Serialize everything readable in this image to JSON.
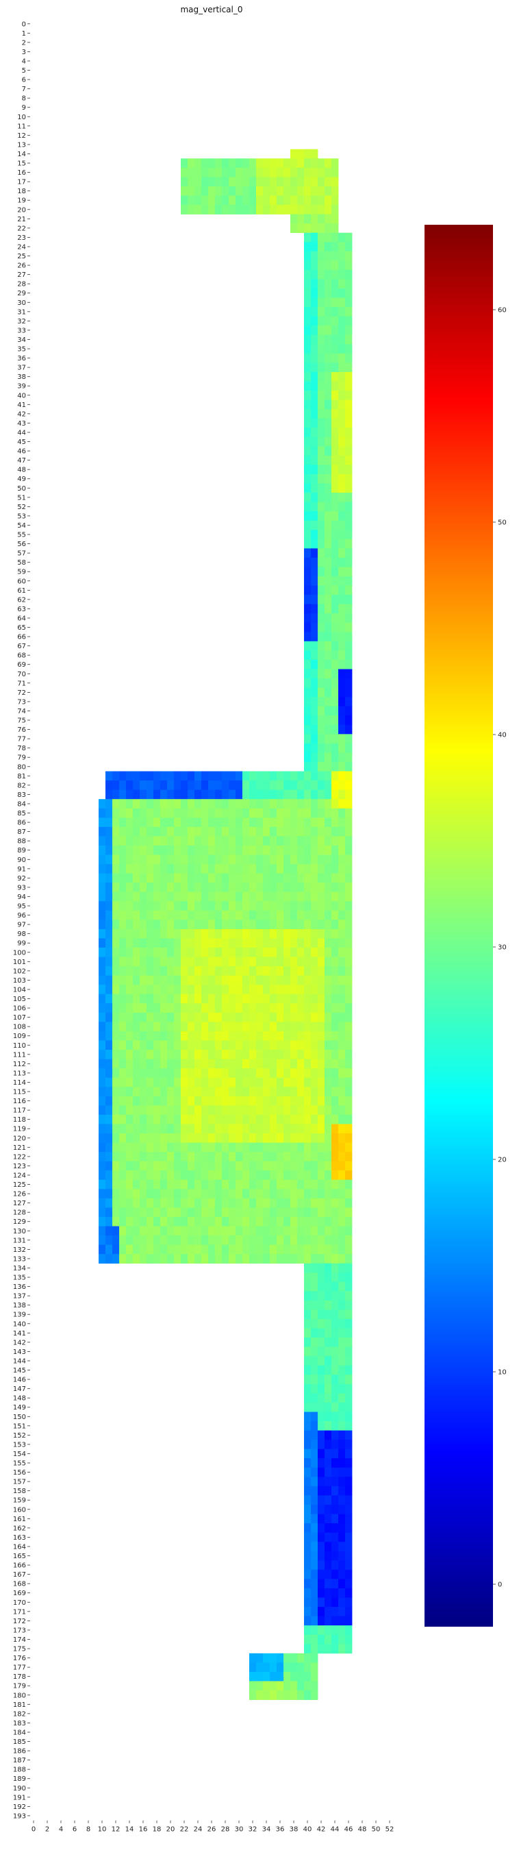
{
  "chart_data": {
    "type": "heatmap",
    "title": "mag_vertical_0",
    "xlabel": "",
    "ylabel": "",
    "x_range": [
      0,
      53
    ],
    "y_range": [
      0,
      193
    ],
    "x_tick_labels": [
      "0",
      "2",
      "4",
      "6",
      "8",
      "10",
      "12",
      "14",
      "16",
      "18",
      "20",
      "22",
      "24",
      "26",
      "28",
      "30",
      "32",
      "34",
      "36",
      "38",
      "40",
      "42",
      "44",
      "46",
      "48",
      "50",
      "52"
    ],
    "y_tick_step": 1,
    "colormap": "jet",
    "colorbar": {
      "vmin": -2,
      "vmax": 64,
      "ticks": [
        0,
        10,
        20,
        30,
        40,
        50,
        60
      ],
      "tick_labels": [
        "0",
        "10",
        "20",
        "30",
        "40",
        "50",
        "60"
      ]
    },
    "grid": false,
    "shape": [
      {
        "rows": [
          14,
          14
        ],
        "cols": [
          38,
          41
        ],
        "value": 36
      },
      {
        "rows": [
          15,
          20
        ],
        "cols": [
          22,
          44
        ],
        "value": 34
      },
      {
        "rows": [
          21,
          22
        ],
        "cols": [
          38,
          44
        ],
        "value": 33
      },
      {
        "rows": [
          23,
          80
        ],
        "cols": [
          40,
          46
        ],
        "value": 30
      },
      {
        "rows": [
          81,
          83
        ],
        "cols": [
          11,
          46
        ],
        "value": 28
      },
      {
        "rows": [
          84,
          133
        ],
        "cols": [
          10,
          46
        ],
        "value": 32
      },
      {
        "rows": [
          134,
          175
        ],
        "cols": [
          40,
          46
        ],
        "value": 28
      },
      {
        "rows": [
          176,
          180
        ],
        "cols": [
          32,
          41
        ],
        "value": 30
      }
    ],
    "regions": [
      {
        "rows": [
          15,
          20
        ],
        "cols": [
          22,
          32
        ],
        "value": 31
      },
      {
        "rows": [
          15,
          20
        ],
        "cols": [
          33,
          44
        ],
        "value": 35
      },
      {
        "rows": [
          23,
          80
        ],
        "cols": [
          40,
          41
        ],
        "value": 26
      },
      {
        "rows": [
          38,
          50
        ],
        "cols": [
          44,
          46
        ],
        "value": 36
      },
      {
        "rows": [
          57,
          66
        ],
        "cols": [
          40,
          41
        ],
        "value": 10
      },
      {
        "rows": [
          70,
          76
        ],
        "cols": [
          45,
          46
        ],
        "value": 8
      },
      {
        "rows": [
          81,
          83
        ],
        "cols": [
          11,
          30
        ],
        "value": 12
      },
      {
        "rows": [
          81,
          84
        ],
        "cols": [
          44,
          46
        ],
        "value": 38
      },
      {
        "rows": [
          84,
          133
        ],
        "cols": [
          10,
          11
        ],
        "value": 16
      },
      {
        "rows": [
          98,
          120
        ],
        "cols": [
          22,
          42
        ],
        "value": 36
      },
      {
        "rows": [
          119,
          124
        ],
        "cols": [
          44,
          46
        ],
        "value": 42
      },
      {
        "rows": [
          130,
          133
        ],
        "cols": [
          10,
          12
        ],
        "value": 14
      },
      {
        "rows": [
          150,
          172
        ],
        "cols": [
          40,
          41
        ],
        "value": 14
      },
      {
        "rows": [
          152,
          172
        ],
        "cols": [
          42,
          46
        ],
        "value": 8
      },
      {
        "rows": [
          176,
          178
        ],
        "cols": [
          32,
          36
        ],
        "value": 18
      },
      {
        "rows": [
          179,
          180
        ],
        "cols": [
          32,
          38
        ],
        "value": 33
      }
    ]
  }
}
